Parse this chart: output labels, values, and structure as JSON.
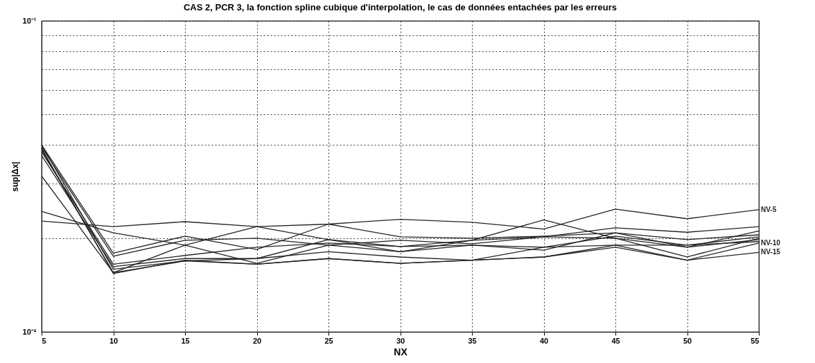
{
  "chart_data": {
    "type": "line",
    "title": "CAS 2, PCR 3, la fonction spline cubique d'interpolation, le cas de données entachées par les erreurs",
    "xlabel": "NX",
    "ylabel": "sup|Δx|",
    "x": [
      5,
      10,
      15,
      20,
      25,
      30,
      35,
      40,
      45,
      50,
      55
    ],
    "xlim": [
      5,
      55
    ],
    "xticks": [
      5,
      10,
      15,
      20,
      25,
      30,
      35,
      40,
      45,
      50,
      55
    ],
    "ylim": [
      0.01,
      0.1
    ],
    "log": "y",
    "yticks": [
      {
        "value": 0.01,
        "label": "10⁻²"
      },
      {
        "value": 0.02,
        "label": null
      },
      {
        "value": 0.03,
        "label": null
      },
      {
        "value": 0.04,
        "label": null
      },
      {
        "value": 0.05,
        "label": null
      },
      {
        "value": 0.06,
        "label": null
      },
      {
        "value": 0.07,
        "label": null
      },
      {
        "value": 0.08,
        "label": null
      },
      {
        "value": 0.09,
        "label": null
      },
      {
        "value": 0.1,
        "label": "10⁻¹"
      }
    ],
    "grid": true,
    "legend": false,
    "marker": "none",
    "line_style": "solid",
    "series": [
      {
        "name": "NV-5",
        "color": "#222222",
        "values": [
          0.0227,
          0.0218,
          0.0226,
          0.0218,
          0.0222,
          0.023,
          0.0225,
          0.0214,
          0.0248,
          0.0231,
          0.0247
        ]
      },
      {
        "color": "#222222",
        "values": [
          0.0244,
          0.0208,
          0.019,
          0.0218,
          0.0198,
          0.0188,
          0.0197,
          0.0229,
          0.02,
          0.0187,
          0.0211
        ]
      },
      {
        "color": "#222222",
        "values": [
          0.0399,
          0.0179,
          0.0203,
          0.0184,
          0.0222,
          0.0202,
          0.02,
          0.0203,
          0.0208,
          0.0198,
          0.0205
        ]
      },
      {
        "color": "#222222",
        "values": [
          0.0393,
          0.0175,
          0.0197,
          0.02,
          0.019,
          0.0197,
          0.0192,
          0.0202,
          0.0216,
          0.0209,
          0.0218
        ]
      },
      {
        "color": "#222222",
        "values": [
          0.0379,
          0.0165,
          0.0176,
          0.0187,
          0.0193,
          0.0188,
          0.019,
          0.0187,
          0.0203,
          0.019,
          0.0202
        ]
      },
      {
        "color": "#222222",
        "values": [
          0.0369,
          0.0162,
          0.0172,
          0.0172,
          0.0198,
          0.0181,
          0.0197,
          0.0202,
          0.02,
          0.0174,
          0.02
        ]
      },
      {
        "color": "#222222",
        "values": [
          0.0317,
          0.0155,
          0.019,
          0.0166,
          0.019,
          0.0181,
          0.019,
          0.0183,
          0.0208,
          0.0187,
          0.0198
        ]
      },
      {
        "color": "#222222",
        "values": [
          0.0399,
          0.0159,
          0.0169,
          0.0172,
          0.0181,
          0.0174,
          0.017,
          0.0187,
          0.019,
          0.019,
          0.0195
        ]
      },
      {
        "name": "NV-10",
        "color": "#222222",
        "values": [
          0.0389,
          0.0154,
          0.017,
          0.0165,
          0.0172,
          0.0166,
          0.017,
          0.0174,
          0.0187,
          0.017,
          0.0193
        ]
      },
      {
        "name": "NV-15",
        "color": "#222222",
        "values": [
          0.0385,
          0.0155,
          0.0169,
          0.0165,
          0.0172,
          0.0166,
          0.017,
          0.0174,
          0.019,
          0.017,
          0.018
        ]
      }
    ]
  }
}
